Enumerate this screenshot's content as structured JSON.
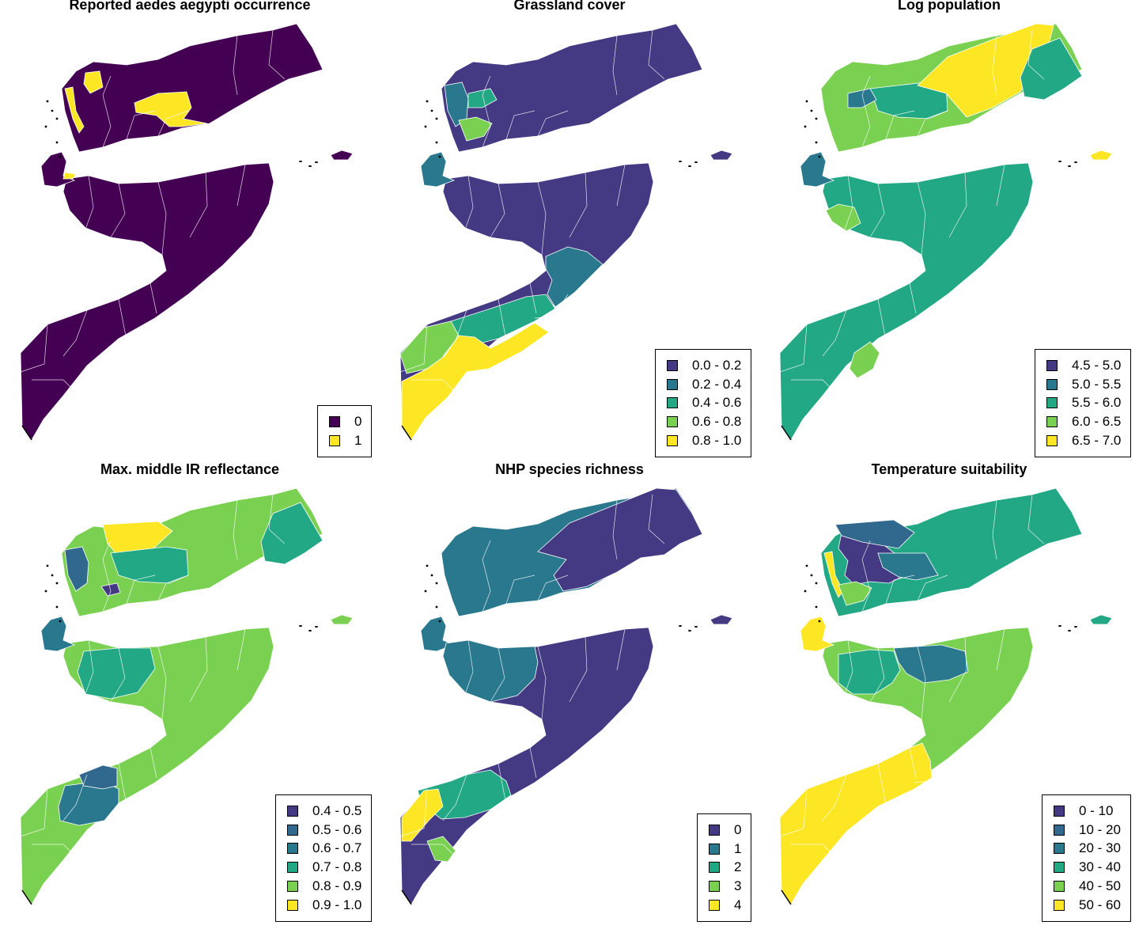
{
  "palette": {
    "binary": [
      "#440154",
      "#fde725"
    ],
    "five": [
      "#443983",
      "#31688e",
      "#21918c",
      "#35b779",
      "#fde725"
    ],
    "grass5": [
      "#423e85",
      "#2a788e",
      "#22a884",
      "#7ad151",
      "#fde725"
    ],
    "six": [
      "#433d84",
      "#33638d",
      "#27808e",
      "#21a685",
      "#7ad151",
      "#fde725"
    ],
    "border": "#ffffff"
  },
  "panels": [
    {
      "title": "Reported aedes aegypti occurrence",
      "legend": [
        "0",
        "1"
      ],
      "legend_colors": [
        "#440154",
        "#fde725"
      ],
      "regions": {
        "yemen": "#440154",
        "somalia": "#440154",
        "djibouti": "#440154",
        "socotra": "#440154",
        "highlights": [
          {
            "shape": "ya1",
            "color": "#fde725"
          },
          {
            "shape": "ya2",
            "color": "#fde725"
          },
          {
            "shape": "ya3",
            "color": "#fde725"
          },
          {
            "shape": "dj1",
            "color": "#fde725"
          }
        ]
      }
    },
    {
      "title": "Grassland cover",
      "legend": [
        "0.0 - 0.2",
        "0.2 - 0.4",
        "0.4 - 0.6",
        "0.6 - 0.8",
        "0.8 - 1.0"
      ],
      "legend_colors": [
        "#443983",
        "#2a788e",
        "#22a884",
        "#7ad151",
        "#fde725"
      ],
      "regions": {
        "yemen": "#443983",
        "somalia": "#443983",
        "djibouti": "#2a788e",
        "socotra": "#443983",
        "highlights": [
          {
            "shape": "yw1",
            "color": "#2a788e"
          },
          {
            "shape": "yw2",
            "color": "#22a884"
          },
          {
            "shape": "yw3",
            "color": "#7ad151"
          },
          {
            "shape": "sm1",
            "color": "#2a788e"
          },
          {
            "shape": "sm2",
            "color": "#22a884"
          },
          {
            "shape": "ss1",
            "color": "#7ad151"
          },
          {
            "shape": "ss2",
            "color": "#fde725"
          }
        ]
      }
    },
    {
      "title": "Log population",
      "legend": [
        "4.5 - 5.0",
        "5.0 - 5.5",
        "5.5 - 6.0",
        "6.0 - 6.5",
        "6.5 - 7.0"
      ],
      "legend_colors": [
        "#443983",
        "#2a788e",
        "#22a884",
        "#7ad151",
        "#fde725"
      ],
      "regions": {
        "yemen": "#7ad151",
        "somalia": "#22a884",
        "djibouti": "#2a788e",
        "socotra": "#fde725",
        "highlights": [
          {
            "shape": "yc1",
            "color": "#22a884"
          },
          {
            "shape": "ye1",
            "color": "#fde725"
          },
          {
            "shape": "ye2",
            "color": "#22a884"
          },
          {
            "shape": "yw2",
            "color": "#2a788e"
          },
          {
            "shape": "sn1",
            "color": "#7ad151"
          },
          {
            "shape": "ss3",
            "color": "#7ad151"
          },
          {
            "shape": "dj2",
            "color": "#443983"
          }
        ]
      }
    },
    {
      "title": "Max. middle IR reflectance",
      "legend": [
        "0.4 - 0.5",
        "0.5 - 0.6",
        "0.6 - 0.7",
        "0.7 - 0.8",
        "0.8 - 0.9",
        "0.9 - 1.0"
      ],
      "legend_colors": [
        "#443983",
        "#31688e",
        "#2a788e",
        "#22a884",
        "#7ad151",
        "#fde725"
      ],
      "regions": {
        "yemen": "#7ad151",
        "somalia": "#7ad151",
        "djibouti": "#2a788e",
        "socotra": "#7ad151",
        "highlights": [
          {
            "shape": "ym1",
            "color": "#fde725"
          },
          {
            "shape": "yw1",
            "color": "#31688e"
          },
          {
            "shape": "yc1",
            "color": "#22a884"
          },
          {
            "shape": "yw4",
            "color": "#443983"
          },
          {
            "shape": "ye2",
            "color": "#22a884"
          },
          {
            "shape": "sn2",
            "color": "#22a884"
          },
          {
            "shape": "ss4",
            "color": "#2a788e"
          },
          {
            "shape": "ss5",
            "color": "#31688e"
          }
        ]
      }
    },
    {
      "title": "NHP species richness",
      "legend": [
        "0",
        "1",
        "2",
        "3",
        "4"
      ],
      "legend_colors": [
        "#443983",
        "#2a788e",
        "#22a884",
        "#7ad151",
        "#fde725"
      ],
      "regions": {
        "yemen": "#2a788e",
        "somalia": "#443983",
        "djibouti": "#2a788e",
        "socotra": "#443983",
        "highlights": [
          {
            "shape": "ye3",
            "color": "#443983"
          },
          {
            "shape": "sn3",
            "color": "#2a788e"
          },
          {
            "shape": "ss6",
            "color": "#22a884"
          },
          {
            "shape": "ss7",
            "color": "#fde725"
          },
          {
            "shape": "ss8",
            "color": "#7ad151"
          }
        ]
      }
    },
    {
      "title": "Temperature suitability",
      "legend": [
        "0 - 10",
        "10 - 20",
        "20 - 30",
        "30 - 40",
        "40 - 50",
        "50 - 60"
      ],
      "legend_colors": [
        "#443983",
        "#31688e",
        "#2a788e",
        "#22a884",
        "#7ad151",
        "#fde725"
      ],
      "regions": {
        "yemen": "#22a884",
        "somalia": "#7ad151",
        "djibouti": "#fde725",
        "socotra": "#22a884",
        "highlights": [
          {
            "shape": "yc2",
            "color": "#443983"
          },
          {
            "shape": "yn1",
            "color": "#31688e"
          },
          {
            "shape": "yc3",
            "color": "#2a788e"
          },
          {
            "shape": "ya1",
            "color": "#fde725"
          },
          {
            "shape": "yw3",
            "color": "#7ad151"
          },
          {
            "shape": "sn4",
            "color": "#2a788e"
          },
          {
            "shape": "sn5",
            "color": "#22a884"
          },
          {
            "shape": "ss9",
            "color": "#fde725"
          }
        ]
      }
    }
  ]
}
